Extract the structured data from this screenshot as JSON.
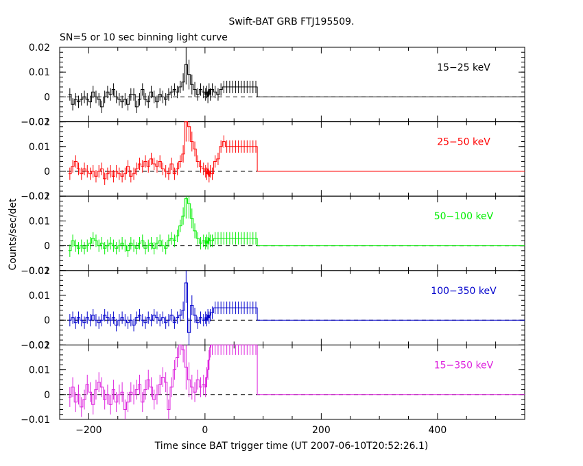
{
  "title": "Swift-BAT GRB FTJ195509.",
  "subtitle": "SN=5 or 10 sec binning light curve",
  "ylabel": "Counts/sec/det",
  "xlabel": "Time since BAT trigger time (UT 2007-06-10T20:52:26.1)",
  "chart_data": {
    "type": "line",
    "style": "step histogram with error bars",
    "xlim": [
      -250,
      550
    ],
    "x_ticks": [
      -200,
      0,
      200,
      400
    ],
    "x_tick_labels": [
      "−200",
      "0",
      "200",
      "400"
    ],
    "grid": false,
    "panels": [
      {
        "name": "15−25 keV",
        "color": "#000000",
        "ylim": [
          -0.01,
          0.02
        ],
        "y_tick_labels": [
          "−0.01",
          "0",
          "0.01",
          "0.02"
        ],
        "x": [
          -235,
          -230,
          -225,
          -220,
          -215,
          -210,
          -205,
          -200,
          -195,
          -190,
          -185,
          -180,
          -175,
          -170,
          -165,
          -160,
          -155,
          -150,
          -145,
          -140,
          -135,
          -130,
          -125,
          -120,
          -115,
          -110,
          -105,
          -100,
          -95,
          -90,
          -85,
          -80,
          -75,
          -70,
          -65,
          -60,
          -55,
          -50,
          -45,
          -40,
          -35,
          -30,
          -25,
          -20,
          -15,
          -10,
          -5,
          0,
          2,
          4,
          6,
          8,
          10,
          15,
          20,
          25,
          30,
          35,
          40,
          45,
          50,
          55,
          60,
          65,
          70,
          75,
          80,
          85,
          90,
          95,
          100,
          315,
          550
        ],
        "y": [
          0.001,
          -0.003,
          -0.001,
          -0.002,
          -0.001,
          0,
          -0.001,
          -0.002,
          0.002,
          0,
          -0.001,
          -0.004,
          0,
          0.002,
          0.001,
          0.003,
          0,
          -0.001,
          -0.002,
          -0.001,
          -0.003,
          0.001,
          0.001,
          -0.004,
          -0.001,
          0.003,
          -0.001,
          -0.002,
          0.002,
          0,
          -0.002,
          0.001,
          0,
          -0.001,
          0.001,
          0.002,
          0.003,
          0.002,
          0.004,
          0.006,
          0.013,
          0.009,
          0.005,
          0.003,
          0.001,
          0.003,
          0.002,
          0.001,
          0.002,
          0,
          0.003,
          0.001,
          0.003,
          0.002,
          0.001,
          0.003,
          0.004,
          0.004,
          0.004,
          0.004,
          0.004,
          0.004,
          0.004,
          0.004,
          0.004,
          0.004,
          0.004,
          0.004,
          0,
          0,
          0,
          0,
          0
        ],
        "err": [
          0.0025,
          0.0025,
          0.0025,
          0.0025,
          0.0025,
          0.0025,
          0.0025,
          0.0025,
          0.0025,
          0.0025,
          0.0025,
          0.0025,
          0.0025,
          0.0025,
          0.0025,
          0.0025,
          0.0025,
          0.0025,
          0.0025,
          0.0025,
          0.0025,
          0.0025,
          0.0025,
          0.0025,
          0.0025,
          0.0025,
          0.0025,
          0.0025,
          0.0025,
          0.0025,
          0.0025,
          0.0025,
          0.0025,
          0.0025,
          0.0025,
          0.0025,
          0.0025,
          0.0025,
          0.0025,
          0.0035,
          0.008,
          0.006,
          0.004,
          0.003,
          0.0025,
          0.0025,
          0.0025,
          0.0025,
          0.0025,
          0.0025,
          0.0025,
          0.0025,
          0.0025,
          0.0025,
          0.0025,
          0.0025,
          0.0025,
          0.0025,
          0.0025,
          0.0025,
          0.0025,
          0.0025,
          0.0025,
          0.0025,
          0.0025,
          0.0025,
          0.0025,
          0.0025,
          0,
          0,
          0,
          0,
          0
        ]
      },
      {
        "name": "25−50 keV",
        "color": "#ff0000",
        "ylim": [
          -0.01,
          0.02
        ],
        "y_tick_labels": [
          "−0.01",
          "0",
          "0.01",
          "0.02"
        ],
        "x": [
          -235,
          -230,
          -225,
          -220,
          -215,
          -210,
          -205,
          -200,
          -195,
          -190,
          -185,
          -180,
          -175,
          -170,
          -165,
          -160,
          -155,
          -150,
          -145,
          -140,
          -135,
          -130,
          -125,
          -120,
          -115,
          -110,
          -105,
          -100,
          -95,
          -90,
          -85,
          -80,
          -75,
          -70,
          -65,
          -60,
          -55,
          -50,
          -45,
          -40,
          -35,
          -30,
          -25,
          -20,
          -15,
          -10,
          -5,
          0,
          2,
          4,
          6,
          8,
          10,
          15,
          20,
          25,
          30,
          35,
          40,
          45,
          50,
          55,
          60,
          65,
          70,
          75,
          80,
          85,
          90,
          95,
          100,
          315,
          550
        ],
        "y": [
          -0.001,
          0.002,
          0.004,
          0.001,
          -0.001,
          0.001,
          0,
          -0.001,
          0,
          -0.002,
          0,
          0.001,
          -0.003,
          -0.001,
          0,
          -0.002,
          0,
          -0.001,
          -0.002,
          -0.001,
          0.002,
          -0.002,
          -0.001,
          0.001,
          0.003,
          0.002,
          0.004,
          0.002,
          0.005,
          0.003,
          0.002,
          0.004,
          0.001,
          0,
          -0.001,
          0.003,
          -0.001,
          0.001,
          0.004,
          0.007,
          0.02,
          0.018,
          0.012,
          0.009,
          0.004,
          0.002,
          0.001,
          0,
          -0.001,
          0.001,
          -0.002,
          0,
          -0.001,
          0.004,
          0.005,
          0.01,
          0.012,
          0.01,
          0.01,
          0.01,
          0.01,
          0.01,
          0.01,
          0.01,
          0.01,
          0.01,
          0.01,
          0.01,
          0,
          0,
          0,
          0,
          0
        ],
        "err": [
          0.0025,
          0.0025,
          0.0025,
          0.0025,
          0.0025,
          0.0025,
          0.0025,
          0.0025,
          0.0025,
          0.0025,
          0.0025,
          0.0025,
          0.0025,
          0.0025,
          0.0025,
          0.0025,
          0.0025,
          0.0025,
          0.0025,
          0.0025,
          0.0025,
          0.0025,
          0.0025,
          0.0025,
          0.0025,
          0.0025,
          0.0025,
          0.0025,
          0.0025,
          0.0025,
          0.0025,
          0.0025,
          0.0025,
          0.0025,
          0.0025,
          0.0025,
          0.0025,
          0.0025,
          0.0025,
          0.0035,
          0.008,
          0.006,
          0.004,
          0.003,
          0.0025,
          0.0025,
          0.0025,
          0.0025,
          0.0025,
          0.0025,
          0.0025,
          0.0025,
          0.0025,
          0.0025,
          0.0025,
          0.0025,
          0.0025,
          0.0025,
          0.0025,
          0.0025,
          0.0025,
          0.0025,
          0.0025,
          0.0025,
          0.0025,
          0.0025,
          0.0025,
          0.0025,
          0,
          0,
          0,
          0,
          0
        ]
      },
      {
        "name": "50−100 keV",
        "color": "#00ee00",
        "ylim": [
          -0.01,
          0.02
        ],
        "y_tick_labels": [
          "−0.01",
          "0",
          "0.01",
          "0.02"
        ],
        "x": [
          -235,
          -230,
          -225,
          -220,
          -215,
          -210,
          -205,
          -200,
          -195,
          -190,
          -185,
          -180,
          -175,
          -170,
          -165,
          -160,
          -155,
          -150,
          -145,
          -140,
          -135,
          -130,
          -125,
          -120,
          -115,
          -110,
          -105,
          -100,
          -95,
          -90,
          -85,
          -80,
          -75,
          -70,
          -65,
          -60,
          -55,
          -50,
          -45,
          -40,
          -35,
          -30,
          -25,
          -20,
          -15,
          -10,
          -5,
          0,
          2,
          4,
          6,
          8,
          10,
          15,
          20,
          25,
          30,
          35,
          40,
          45,
          50,
          55,
          60,
          65,
          70,
          75,
          80,
          85,
          90,
          95,
          100,
          315,
          550
        ],
        "y": [
          -0.002,
          0.002,
          0,
          -0.001,
          0,
          -0.001,
          0,
          0.001,
          0.003,
          0.002,
          0,
          0.001,
          -0.001,
          0,
          0.001,
          0,
          -0.001,
          0,
          0.001,
          0,
          -0.002,
          0.001,
          0,
          -0.001,
          0.001,
          0.002,
          -0.001,
          0,
          0.001,
          -0.001,
          0.001,
          0.002,
          0,
          -0.001,
          0.002,
          0.003,
          0.002,
          0.004,
          0.008,
          0.012,
          0.019,
          0.017,
          0.011,
          0.006,
          0.003,
          0.001,
          0.002,
          0.001,
          0.002,
          0.001,
          0.003,
          0.002,
          0.002,
          0.003,
          0.003,
          0.003,
          0.003,
          0.003,
          0.003,
          0.003,
          0.003,
          0.003,
          0.003,
          0.003,
          0.003,
          0.003,
          0.003,
          0.003,
          0,
          0,
          0,
          0,
          0
        ],
        "err": [
          0.0025,
          0.0025,
          0.0025,
          0.0025,
          0.0025,
          0.0025,
          0.0025,
          0.0025,
          0.0025,
          0.0025,
          0.0025,
          0.0025,
          0.0025,
          0.0025,
          0.0025,
          0.0025,
          0.0025,
          0.0025,
          0.0025,
          0.0025,
          0.0025,
          0.0025,
          0.0025,
          0.0025,
          0.0025,
          0.0025,
          0.0025,
          0.0025,
          0.0025,
          0.0025,
          0.0025,
          0.0025,
          0.0025,
          0.0025,
          0.0025,
          0.0025,
          0.0025,
          0.0025,
          0.0025,
          0.0035,
          0.008,
          0.006,
          0.004,
          0.003,
          0.0025,
          0.0025,
          0.0025,
          0.0025,
          0.0025,
          0.0025,
          0.0025,
          0.0025,
          0.0025,
          0.0025,
          0.0025,
          0.0025,
          0.0025,
          0.0025,
          0.0025,
          0.0025,
          0.0025,
          0.0025,
          0.0025,
          0.0025,
          0.0025,
          0.0025,
          0.0025,
          0.0025,
          0,
          0,
          0,
          0,
          0
        ]
      },
      {
        "name": "100−350 keV",
        "color": "#0000cc",
        "ylim": [
          -0.01,
          0.02
        ],
        "y_tick_labels": [
          "−0.01",
          "0",
          "0.01",
          "0.02"
        ],
        "x": [
          -235,
          -230,
          -225,
          -220,
          -215,
          -210,
          -205,
          -200,
          -195,
          -190,
          -185,
          -180,
          -175,
          -170,
          -165,
          -160,
          -155,
          -150,
          -145,
          -140,
          -135,
          -130,
          -125,
          -120,
          -115,
          -110,
          -105,
          -100,
          -95,
          -90,
          -85,
          -80,
          -75,
          -70,
          -65,
          -60,
          -55,
          -50,
          -45,
          -40,
          -35,
          -30,
          -25,
          -20,
          -15,
          -10,
          -5,
          0,
          2,
          4,
          6,
          8,
          10,
          15,
          20,
          25,
          30,
          35,
          40,
          45,
          50,
          55,
          60,
          65,
          70,
          75,
          80,
          85,
          90,
          95,
          100,
          315,
          550
        ],
        "y": [
          0,
          0.001,
          -0.001,
          0.001,
          0,
          -0.001,
          0.001,
          0,
          0.002,
          0,
          -0.001,
          0,
          0.002,
          0.001,
          0,
          0.001,
          -0.002,
          0,
          0.001,
          0,
          -0.001,
          0,
          -0.002,
          0.001,
          0.002,
          0,
          -0.001,
          0.001,
          0,
          0.002,
          0.001,
          0,
          0.001,
          -0.001,
          0,
          0.002,
          -0.001,
          0.001,
          0.002,
          0.004,
          0.015,
          -0.005,
          0.006,
          0.002,
          -0.001,
          0.001,
          0,
          0.001,
          0,
          0.002,
          0.001,
          0.002,
          0.003,
          0.005,
          0.005,
          0.005,
          0.005,
          0.005,
          0.005,
          0.005,
          0.005,
          0.005,
          0.005,
          0.005,
          0.005,
          0.005,
          0.005,
          0.005,
          0,
          0,
          0,
          0,
          0
        ],
        "err": [
          0.0025,
          0.0025,
          0.0025,
          0.0025,
          0.0025,
          0.0025,
          0.0025,
          0.0025,
          0.0025,
          0.0025,
          0.0025,
          0.0025,
          0.0025,
          0.0025,
          0.0025,
          0.0025,
          0.0025,
          0.0025,
          0.0025,
          0.0025,
          0.0025,
          0.0025,
          0.0025,
          0.0025,
          0.0025,
          0.0025,
          0.0025,
          0.0025,
          0.0025,
          0.0025,
          0.0025,
          0.0025,
          0.0025,
          0.0025,
          0.0025,
          0.0025,
          0.0025,
          0.0025,
          0.0025,
          0.0035,
          0.008,
          0.006,
          0.004,
          0.003,
          0.0025,
          0.0025,
          0.0025,
          0.0025,
          0.0025,
          0.0025,
          0.0025,
          0.0025,
          0.0025,
          0.0025,
          0.0025,
          0.0025,
          0.0025,
          0.0025,
          0.0025,
          0.0025,
          0.0025,
          0.0025,
          0.0025,
          0.0025,
          0.0025,
          0.0025,
          0.0025,
          0.0025,
          0,
          0,
          0,
          0,
          0
        ]
      },
      {
        "name": "15−350 keV",
        "color": "#dd22dd",
        "ylim": [
          -0.01,
          0.02
        ],
        "y_tick_labels": [
          "−0.01",
          "0",
          "0.01",
          "0.02"
        ],
        "x": [
          -235,
          -230,
          -225,
          -220,
          -215,
          -210,
          -205,
          -200,
          -195,
          -190,
          -185,
          -180,
          -175,
          -170,
          -165,
          -160,
          -155,
          -150,
          -145,
          -140,
          -135,
          -130,
          -125,
          -120,
          -115,
          -110,
          -105,
          -100,
          -95,
          -90,
          -85,
          -80,
          -75,
          -70,
          -65,
          -60,
          -55,
          -50,
          -45,
          -40,
          -35,
          -30,
          -25,
          -20,
          -15,
          -10,
          -5,
          0,
          2,
          4,
          6,
          8,
          10,
          15,
          20,
          25,
          30,
          35,
          40,
          45,
          50,
          55,
          60,
          65,
          70,
          75,
          80,
          85,
          90,
          95,
          100,
          315,
          550
        ],
        "y": [
          -0.001,
          0.003,
          -0.003,
          0,
          -0.005,
          -0.002,
          0.004,
          0.001,
          -0.004,
          0.002,
          0.005,
          0.003,
          -0.002,
          0,
          -0.004,
          0.002,
          -0.003,
          0,
          0.001,
          -0.006,
          -0.003,
          0.001,
          0,
          0.002,
          0.004,
          -0.003,
          0.002,
          0.006,
          0.003,
          -0.002,
          0,
          0.004,
          0.007,
          0.005,
          -0.006,
          0.003,
          0.01,
          0.015,
          0.02,
          0.018,
          0.011,
          0.006,
          0.003,
          0.001,
          0.006,
          0.003,
          0.004,
          0.003,
          0.007,
          0.01,
          0.014,
          0.019,
          0.02,
          0.02,
          0.02,
          0.02,
          0.02,
          0.02,
          0.02,
          0.02,
          0.02,
          0.02,
          0.02,
          0.02,
          0.02,
          0.02,
          0.02,
          0.02,
          0,
          0,
          0,
          0,
          0
        ],
        "err": [
          0.004,
          0.004,
          0.004,
          0.004,
          0.004,
          0.004,
          0.004,
          0.004,
          0.004,
          0.004,
          0.004,
          0.004,
          0.004,
          0.004,
          0.004,
          0.004,
          0.004,
          0.004,
          0.004,
          0.004,
          0.004,
          0.004,
          0.004,
          0.004,
          0.004,
          0.004,
          0.004,
          0.004,
          0.004,
          0.004,
          0.004,
          0.004,
          0.004,
          0.004,
          0.004,
          0.004,
          0.004,
          0.004,
          0.004,
          0.005,
          0.009,
          0.007,
          0.005,
          0.004,
          0.004,
          0.004,
          0.004,
          0.004,
          0.004,
          0.004,
          0.004,
          0.004,
          0.004,
          0.004,
          0.004,
          0.004,
          0.004,
          0.004,
          0.004,
          0.004,
          0.004,
          0.004,
          0.004,
          0.004,
          0.004,
          0.004,
          0.004,
          0.004,
          0,
          0,
          0,
          0,
          0
        ]
      }
    ]
  }
}
